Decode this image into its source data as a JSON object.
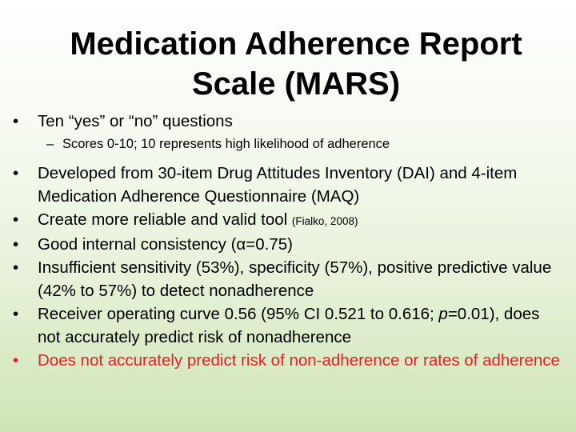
{
  "slide": {
    "title_line1": "Medication Adherence Report",
    "title_line2": "Scale (MARS)",
    "bullet_symbol": "•",
    "sub_symbol": "–",
    "bullets": [
      {
        "text": "Ten “yes” or “no” questions"
      },
      {
        "sub": "Scores 0-10; 10 represents high likelihood of adherence"
      },
      {
        "text": "Developed from 30-item Drug Attitudes Inventory (DAI) and 4-item Medication Adherence Questionnaire (MAQ)"
      },
      {
        "text": "Create more reliable and valid tool ",
        "cite": "(Fialko, 2008)"
      },
      {
        "text": "Good internal consistency (α=0.75)"
      },
      {
        "text": "Insufficient sensitivity (53%), specificity (57%), positive predictive value (42% to 57%) to detect nonadherence"
      },
      {
        "text_a": "Receiver operating curve 0.56 (95% CI 0.521 to 0.616; ",
        "italic": "p",
        "text_b": "=0.01), does not accurately predict risk of nonadherence"
      },
      {
        "text": "Does not accurately predict risk of non-adherence or rates of adherence",
        "color": "#ec1c24"
      }
    ]
  }
}
